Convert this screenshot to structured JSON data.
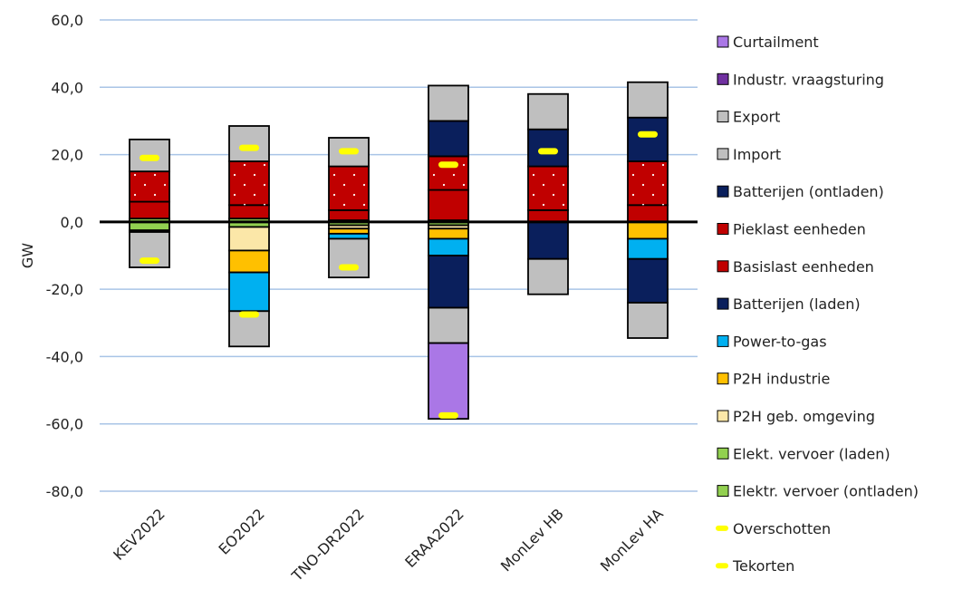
{
  "chart_data": {
    "type": "bar",
    "stacked": true,
    "ylabel": "GW",
    "ylim": [
      -80,
      60
    ],
    "yticks": [
      "60,0",
      "40,0",
      "20,0",
      "0,0",
      "-20,0",
      "-40,0",
      "-60,0",
      "-80,0"
    ],
    "ytick_values": [
      60,
      40,
      20,
      0,
      -20,
      -40,
      -60,
      -80
    ],
    "grid": true,
    "categories": [
      "KEV2022",
      "EO2022",
      "TNO-DR2022",
      "ERAA2022",
      "MonLev HB",
      "MonLev HA"
    ],
    "colors": {
      "curtailment": "#aa77e6",
      "industr_vraagsturing": "#7030a0",
      "export": "#bfbfbf",
      "import": "#bfbfbf",
      "batterijen_ontladen": "#0a1f5c",
      "pieklast": "#c00000",
      "basislast": "#c00000",
      "batterijen_laden": "#0a1f5c",
      "power_to_gas": "#00b0f0",
      "p2h_industrie": "#ffc000",
      "p2h_geb": "#fbe7a8",
      "ev_laden": "#92d050",
      "ev_ontladen": "#92d050",
      "marker": "#ffff00"
    },
    "positive_series": [
      {
        "name": "Elektr. vervoer (ontladen)",
        "key": "ev_ontladen",
        "values": [
          1,
          1,
          0.5,
          0.5,
          0,
          0
        ]
      },
      {
        "name": "Basislast eenheden",
        "key": "basislast",
        "values": [
          5,
          4,
          3,
          9,
          3.5,
          5
        ]
      },
      {
        "name": "Pieklast eenheden",
        "key": "pieklast",
        "values": [
          9,
          13,
          13,
          10,
          13,
          13
        ],
        "pattern": "dots"
      },
      {
        "name": "Batterijen (ontladen)",
        "key": "batterijen_ontladen",
        "values": [
          0,
          0,
          0,
          10.5,
          11,
          13
        ]
      },
      {
        "name": "Import",
        "key": "import",
        "values": [
          9.5,
          10.5,
          8.5,
          10.5,
          10.5,
          10.5
        ]
      },
      {
        "name": "Industr. vraagsturing",
        "key": "industr_vraagsturing",
        "values": [
          0,
          0,
          0,
          0,
          0,
          0
        ]
      }
    ],
    "negative_series": [
      {
        "name": "Elekt. vervoer (laden)",
        "key": "ev_laden",
        "values": [
          -2.5,
          -1.5,
          -1,
          -1,
          0,
          0
        ]
      },
      {
        "name": "P2H geb. omgeving",
        "key": "p2h_geb",
        "values": [
          -0.5,
          -7,
          -1,
          -1,
          0,
          0
        ]
      },
      {
        "name": "P2H industrie",
        "key": "p2h_industrie",
        "values": [
          0,
          -6.5,
          -1.5,
          -3,
          0,
          -5
        ]
      },
      {
        "name": "Power-to-gas",
        "key": "power_to_gas",
        "values": [
          0,
          -11.5,
          -1.5,
          -5,
          0,
          -6
        ]
      },
      {
        "name": "Batterijen (laden)",
        "key": "batterijen_laden",
        "values": [
          0,
          0,
          0,
          -15.5,
          -11,
          -13
        ]
      },
      {
        "name": "Export",
        "key": "export",
        "values": [
          -10.5,
          -10.5,
          -11.5,
          -10.5,
          -10.5,
          -10.5
        ]
      },
      {
        "name": "Curtailment",
        "key": "curtailment",
        "values": [
          0,
          0,
          0,
          -22.5,
          0,
          0
        ]
      }
    ],
    "overschotten": [
      -11.5,
      -27.5,
      -13.5,
      -57.5,
      null,
      null
    ],
    "tekorten": [
      19,
      22,
      21,
      17,
      21,
      26
    ],
    "legend": [
      {
        "label": "Curtailment",
        "key": "curtailment",
        "kind": "box"
      },
      {
        "label": "Industr. vraagsturing",
        "key": "industr_vraagsturing",
        "kind": "box"
      },
      {
        "label": "Export",
        "key": "export",
        "kind": "box"
      },
      {
        "label": "Import",
        "key": "import",
        "kind": "box"
      },
      {
        "label": "Batterijen (ontladen)",
        "key": "batterijen_ontladen",
        "kind": "box"
      },
      {
        "label": "Pieklast eenheden",
        "key": "pieklast",
        "kind": "box"
      },
      {
        "label": "Basislast eenheden",
        "key": "basislast",
        "kind": "box"
      },
      {
        "label": "Batterijen (laden)",
        "key": "batterijen_laden",
        "kind": "box"
      },
      {
        "label": "Power-to-gas",
        "key": "power_to_gas",
        "kind": "box"
      },
      {
        "label": "P2H industrie",
        "key": "p2h_industrie",
        "kind": "box"
      },
      {
        "label": "P2H geb. omgeving",
        "key": "p2h_geb",
        "kind": "box"
      },
      {
        "label": "Elekt. vervoer (laden)",
        "key": "ev_laden",
        "kind": "box"
      },
      {
        "label": "Elektr. vervoer (ontladen)",
        "key": "ev_ontladen",
        "kind": "box"
      },
      {
        "label": "Overschotten",
        "key": "marker",
        "kind": "dash"
      },
      {
        "label": "Tekorten",
        "key": "marker",
        "kind": "dash"
      }
    ],
    "legend_position": "right"
  }
}
